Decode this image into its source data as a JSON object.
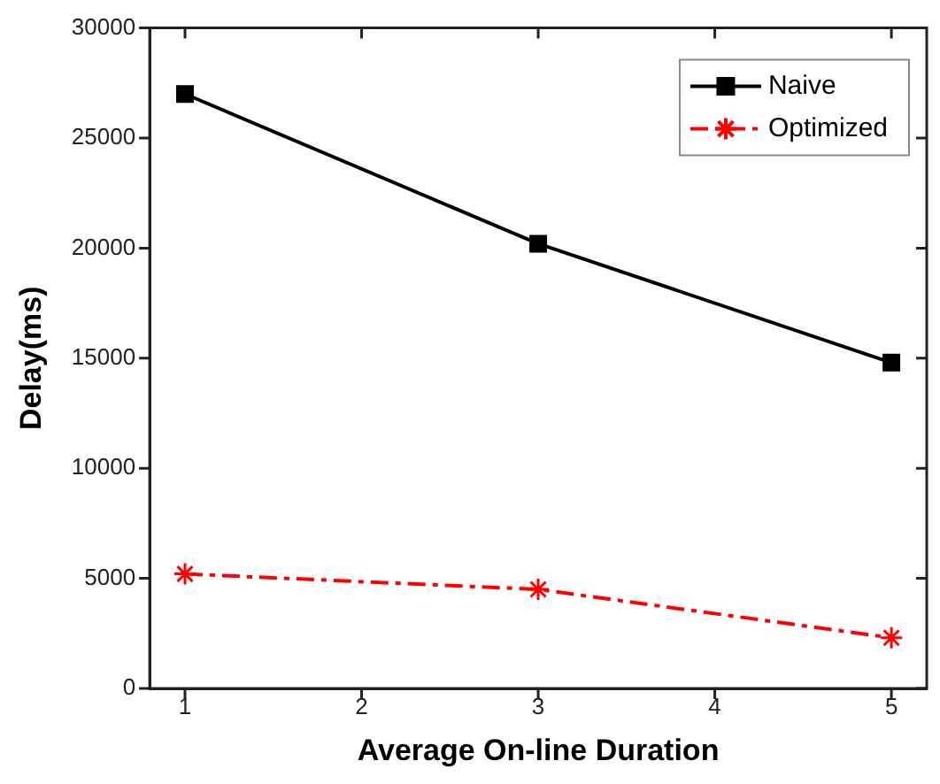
{
  "chart_data": {
    "type": "line",
    "xlabel": "Average On-line Duration",
    "ylabel": "Delay(ms)",
    "x": [
      1,
      3,
      5
    ],
    "series": [
      {
        "name": "Naive",
        "color": "#000000",
        "values": [
          27000,
          20200,
          14800
        ],
        "marker": "square",
        "line_style": "solid"
      },
      {
        "name": "Optimized",
        "color": "#ff0000",
        "values": [
          5200,
          4500,
          2300
        ],
        "marker": "cross",
        "line_style": "dashed"
      }
    ],
    "xlim": [
      0.8,
      5.2
    ],
    "xticks": [
      1,
      2,
      3,
      4,
      5
    ],
    "ylim": [
      0,
      30000
    ],
    "yticks": [
      0,
      5000,
      10000,
      15000,
      20000,
      25000,
      30000
    ],
    "grid": false,
    "legend": "top right"
  }
}
